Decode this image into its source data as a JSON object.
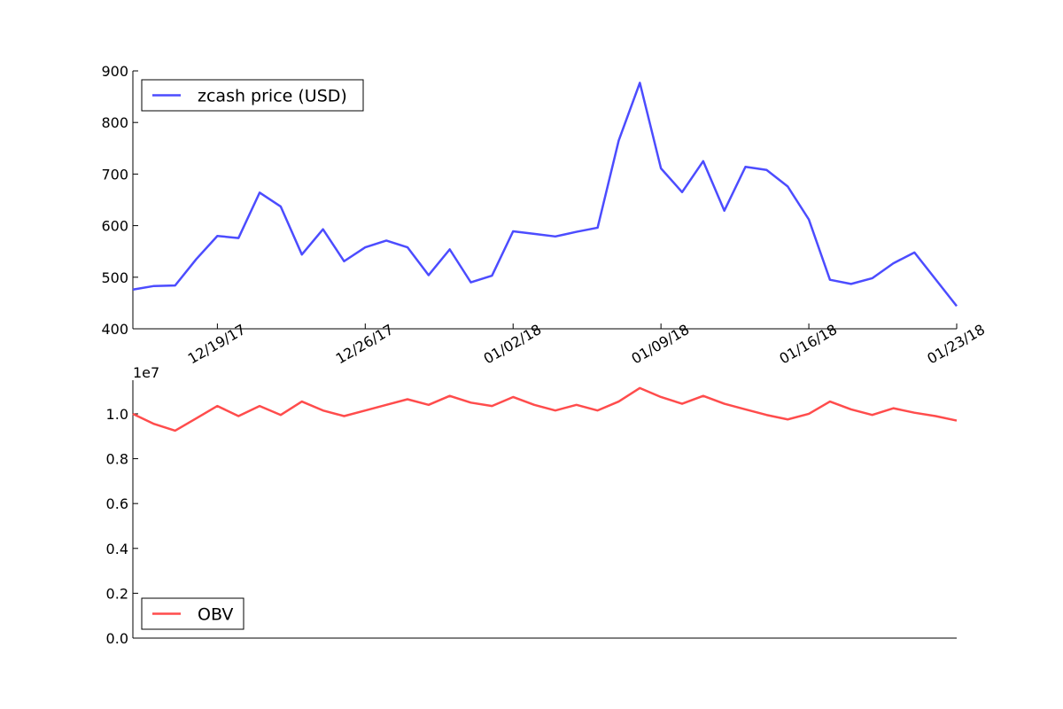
{
  "chart_data": [
    {
      "type": "line",
      "x": [
        "12/15/17",
        "12/16/17",
        "12/17/17",
        "12/18/17",
        "12/19/17",
        "12/20/17",
        "12/21/17",
        "12/22/17",
        "12/23/17",
        "12/24/17",
        "12/25/17",
        "12/26/17",
        "12/27/17",
        "12/28/17",
        "12/29/17",
        "12/30/17",
        "12/31/17",
        "01/01/18",
        "01/02/18",
        "01/03/18",
        "01/04/18",
        "01/05/18",
        "01/06/18",
        "01/07/18",
        "01/08/18",
        "01/09/18",
        "01/10/18",
        "01/11/18",
        "01/12/18",
        "01/13/18",
        "01/14/18",
        "01/15/18",
        "01/16/18",
        "01/17/18",
        "01/18/18",
        "01/19/18",
        "01/20/18",
        "01/21/18",
        "01/22/18",
        "01/23/18"
      ],
      "series": [
        {
          "name": "zcash price (USD)",
          "color": "#4c4cff",
          "values": [
            476,
            483,
            484,
            535,
            580,
            576,
            664,
            637,
            544,
            593,
            531,
            558,
            571,
            558,
            504,
            554,
            490,
            503,
            589,
            584,
            579,
            588,
            596,
            765,
            877,
            711,
            665,
            725,
            629,
            714,
            708,
            676,
            612,
            495,
            487,
            498,
            527,
            548,
            496,
            444
          ]
        }
      ],
      "ylim": [
        400,
        900
      ],
      "yticks": [
        "400",
        "500",
        "600",
        "700",
        "800",
        "900"
      ],
      "xtick_labels": [
        "12/19/17",
        "12/26/17",
        "01/02/18",
        "01/09/18",
        "01/16/18",
        "01/23/18"
      ],
      "legend": "top-left",
      "grid": false
    },
    {
      "type": "line",
      "x": [
        "12/15/17",
        "12/16/17",
        "12/17/17",
        "12/18/17",
        "12/19/17",
        "12/20/17",
        "12/21/17",
        "12/22/17",
        "12/23/17",
        "12/24/17",
        "12/25/17",
        "12/26/17",
        "12/27/17",
        "12/28/17",
        "12/29/17",
        "12/30/17",
        "12/31/17",
        "01/01/18",
        "01/02/18",
        "01/03/18",
        "01/04/18",
        "01/05/18",
        "01/06/18",
        "01/07/18",
        "01/08/18",
        "01/09/18",
        "01/10/18",
        "01/11/18",
        "01/12/18",
        "01/13/18",
        "01/14/18",
        "01/15/18",
        "01/16/18",
        "01/17/18",
        "01/18/18",
        "01/19/18",
        "01/20/18",
        "01/21/18",
        "01/22/18",
        "01/23/18"
      ],
      "series": [
        {
          "name": "OBV",
          "color": "#ff4c4c",
          "values": [
            10000000,
            9550000,
            9250000,
            9800000,
            10350000,
            9900000,
            10350000,
            9950000,
            10550000,
            10150000,
            9900000,
            10150000,
            10400000,
            10650000,
            10400000,
            10800000,
            10500000,
            10350000,
            10750000,
            10400000,
            10150000,
            10400000,
            10150000,
            10550000,
            11150000,
            10750000,
            10450000,
            10800000,
            10450000,
            10200000,
            9950000,
            9750000,
            10000000,
            10550000,
            10200000,
            9950000,
            10250000,
            10050000,
            9900000,
            9700000
          ]
        }
      ],
      "ylim": [
        0,
        11500000
      ],
      "yticks": [
        "0.0",
        "0.2",
        "0.4",
        "0.6",
        "0.8",
        "1.0"
      ],
      "offset_label": "1e7",
      "legend": "bottom-left",
      "grid": false
    }
  ]
}
